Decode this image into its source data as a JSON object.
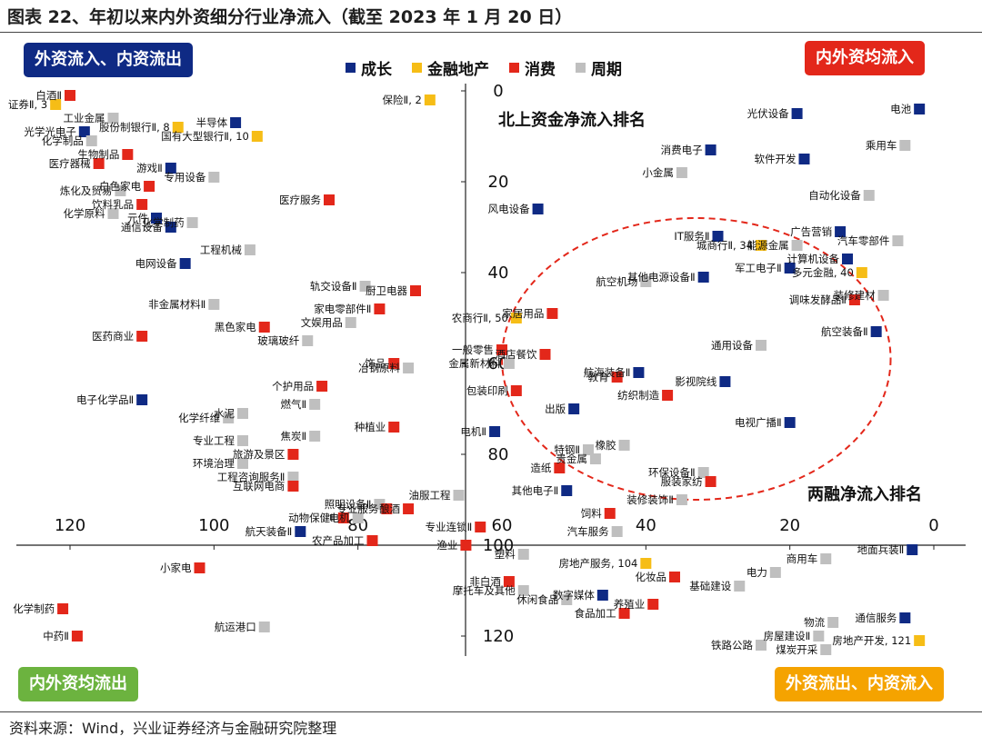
{
  "figure": {
    "title": "图表 22、年初以来内外资细分行业净流入（截至 2023 年 1 月 20 日）",
    "source": "资料来源：Wind，兴业证券经济与金融研究院整理"
  },
  "quadrants": {
    "top_left": "外资流入、内资流出",
    "top_right": "内外资均流入",
    "bottom_left": "内外资均流出",
    "bottom_right": "外资流出、内资流入"
  },
  "annotations": {
    "north_axis": "北上资金净流入排名",
    "margin_axis": "两融净流入排名"
  },
  "colors": {
    "成长": "#0f2a84",
    "金融地产": "#f6bd16",
    "消费": "#e3271a",
    "周期": "#bfbfbf",
    "ellipse": "#e3271a"
  },
  "chart_data": {
    "type": "scatter",
    "x_reversed": true,
    "y_reversed": true,
    "xlim": [
      0,
      125
    ],
    "ylim": [
      0,
      125
    ],
    "x_ticks": [
      "0",
      "20",
      "40",
      "60",
      "80",
      "100",
      "120"
    ],
    "y_ticks": [
      "0",
      "20",
      "40",
      "60",
      "80",
      "100",
      "120"
    ],
    "legend_position": "top-center",
    "legend": [
      "成长",
      "金融地产",
      "消费",
      "周期"
    ],
    "points": [
      {
        "label": "电池",
        "x": 2,
        "y": 4,
        "cat": "成长"
      },
      {
        "label": "乘用车",
        "x": 4,
        "y": 12,
        "cat": "周期"
      },
      {
        "label": "光伏设备",
        "x": 19,
        "y": 5,
        "cat": "成长"
      },
      {
        "label": "消费电子",
        "x": 31,
        "y": 13,
        "cat": "成长"
      },
      {
        "label": "软件开发",
        "x": 18,
        "y": 15,
        "cat": "成长"
      },
      {
        "label": "小金属",
        "x": 35,
        "y": 18,
        "cat": "周期"
      },
      {
        "label": "自动化设备",
        "x": 9,
        "y": 23,
        "cat": "周期"
      },
      {
        "label": "风电设备",
        "x": 55,
        "y": 26,
        "cat": "成长"
      },
      {
        "label": "广告营销",
        "x": 13,
        "y": 31,
        "cat": "成长"
      },
      {
        "label": "汽车零部件",
        "x": 5,
        "y": 33,
        "cat": "周期"
      },
      {
        "label": "IT服务Ⅱ",
        "x": 30,
        "y": 32,
        "cat": "成长"
      },
      {
        "label": "城商行Ⅱ, 34",
        "x": 24,
        "y": 34,
        "cat": "金融地产"
      },
      {
        "label": "能源金属",
        "x": 19,
        "y": 34,
        "cat": "周期"
      },
      {
        "label": "计算机设备",
        "x": 12,
        "y": 37,
        "cat": "成长"
      },
      {
        "label": "军工电子Ⅱ",
        "x": 20,
        "y": 39,
        "cat": "成长"
      },
      {
        "label": "多元金融, 40",
        "x": 10,
        "y": 40,
        "cat": "金融地产"
      },
      {
        "label": "其他电源设备Ⅱ",
        "x": 32,
        "y": 41,
        "cat": "成长"
      },
      {
        "label": "航空机场",
        "x": 40,
        "y": 42,
        "cat": "周期"
      },
      {
        "label": "装修建材",
        "x": 7,
        "y": 45,
        "cat": "周期"
      },
      {
        "label": "调味发酵品Ⅱ",
        "x": 11,
        "y": 46,
        "cat": "消费"
      },
      {
        "label": "家居用品",
        "x": 53,
        "y": 49,
        "cat": "消费"
      },
      {
        "label": "航空装备Ⅱ",
        "x": 8,
        "y": 53,
        "cat": "成长"
      },
      {
        "label": "通用设备",
        "x": 24,
        "y": 56,
        "cat": "周期"
      },
      {
        "label": "一般零售",
        "x": 60,
        "y": 57,
        "cat": "消费"
      },
      {
        "label": "酒店餐饮",
        "x": 54,
        "y": 58,
        "cat": "消费"
      },
      {
        "label": "金属新材料",
        "x": 59,
        "y": 60,
        "cat": "周期"
      },
      {
        "label": "航海装备Ⅱ",
        "x": 41,
        "y": 62,
        "cat": "成长"
      },
      {
        "label": "教育",
        "x": 44,
        "y": 63,
        "cat": "消费"
      },
      {
        "label": "影视院线",
        "x": 29,
        "y": 64,
        "cat": "成长"
      },
      {
        "label": "包装印刷",
        "x": 58,
        "y": 66,
        "cat": "消费"
      },
      {
        "label": "纺织制造",
        "x": 37,
        "y": 67,
        "cat": "消费"
      },
      {
        "label": "出版",
        "x": 50,
        "y": 70,
        "cat": "成长"
      },
      {
        "label": "电视广播Ⅱ",
        "x": 20,
        "y": 73,
        "cat": "成长"
      },
      {
        "label": "电机Ⅱ",
        "x": 61,
        "y": 75,
        "cat": "成长"
      },
      {
        "label": "橡胶",
        "x": 43,
        "y": 78,
        "cat": "周期"
      },
      {
        "label": "特钢Ⅱ",
        "x": 48,
        "y": 79,
        "cat": "周期"
      },
      {
        "label": "贵金属",
        "x": 47,
        "y": 81,
        "cat": "周期"
      },
      {
        "label": "造纸",
        "x": 52,
        "y": 83,
        "cat": "消费"
      },
      {
        "label": "环保设备Ⅱ",
        "x": 32,
        "y": 84,
        "cat": "周期"
      },
      {
        "label": "服装家纺",
        "x": 31,
        "y": 86,
        "cat": "消费"
      },
      {
        "label": "其他电子Ⅱ",
        "x": 51,
        "y": 88,
        "cat": "成长"
      },
      {
        "label": "装修装饰Ⅱ",
        "x": 35,
        "y": 90,
        "cat": "周期"
      },
      {
        "label": "饲料",
        "x": 45,
        "y": 93,
        "cat": "消费"
      },
      {
        "label": "汽车服务",
        "x": 44,
        "y": 97,
        "cat": "周期"
      },
      {
        "label": "专业连锁Ⅱ",
        "x": 63,
        "y": 96,
        "cat": "消费"
      },
      {
        "label": "渔业",
        "x": 65,
        "y": 100,
        "cat": "消费"
      },
      {
        "label": "塑料",
        "x": 57,
        "y": 102,
        "cat": "周期"
      },
      {
        "label": "地面兵装Ⅱ",
        "x": 3,
        "y": 101,
        "cat": "成长"
      },
      {
        "label": "商用车",
        "x": 15,
        "y": 103,
        "cat": "周期"
      },
      {
        "label": "房地产服务, 104",
        "x": 40,
        "y": 104,
        "cat": "金融地产"
      },
      {
        "label": "电力",
        "x": 22,
        "y": 106,
        "cat": "周期"
      },
      {
        "label": "化妆品",
        "x": 36,
        "y": 107,
        "cat": "消费"
      },
      {
        "label": "基础建设",
        "x": 27,
        "y": 109,
        "cat": "周期"
      },
      {
        "label": "白酒Ⅱ",
        "x": 120,
        "y": 1,
        "cat": "消费"
      },
      {
        "label": "证券Ⅱ, 3",
        "x": 122,
        "y": 3,
        "cat": "金融地产"
      },
      {
        "label": "保险Ⅱ, 2",
        "x": 70,
        "y": 2,
        "cat": "金融地产"
      },
      {
        "label": "工业金属",
        "x": 114,
        "y": 6,
        "cat": "周期"
      },
      {
        "label": "半导体",
        "x": 97,
        "y": 7,
        "cat": "成长"
      },
      {
        "label": "股份制银行Ⅱ, 8",
        "x": 105,
        "y": 8,
        "cat": "金融地产"
      },
      {
        "label": "光学光电子",
        "x": 118,
        "y": 9,
        "cat": "成长"
      },
      {
        "label": "国有大型银行Ⅱ, 10",
        "x": 94,
        "y": 10,
        "cat": "金融地产"
      },
      {
        "label": "化学制品",
        "x": 117,
        "y": 11,
        "cat": "周期"
      },
      {
        "label": "生物制品",
        "x": 112,
        "y": 14,
        "cat": "消费"
      },
      {
        "label": "医疗器械",
        "x": 116,
        "y": 16,
        "cat": "消费"
      },
      {
        "label": "游戏Ⅱ",
        "x": 106,
        "y": 17,
        "cat": "成长"
      },
      {
        "label": "专用设备",
        "x": 100,
        "y": 19,
        "cat": "周期"
      },
      {
        "label": "白色家电",
        "x": 109,
        "y": 21,
        "cat": "消费"
      },
      {
        "label": "炼化及贸易",
        "x": 113,
        "y": 22,
        "cat": "周期"
      },
      {
        "label": "饮料乳品",
        "x": 110,
        "y": 25,
        "cat": "消费"
      },
      {
        "label": "化学原料",
        "x": 114,
        "y": 27,
        "cat": "周期"
      },
      {
        "label": "元件",
        "x": 108,
        "y": 28,
        "cat": "成长"
      },
      {
        "label": "化学制药",
        "x": 103,
        "y": 29,
        "cat": "周期"
      },
      {
        "label": "通信设备",
        "x": 106,
        "y": 30,
        "cat": "成长"
      },
      {
        "label": "医疗服务",
        "x": 84,
        "y": 24,
        "cat": "消费"
      },
      {
        "label": "工程机械",
        "x": 95,
        "y": 35,
        "cat": "周期"
      },
      {
        "label": "电网设备",
        "x": 104,
        "y": 38,
        "cat": "成长"
      },
      {
        "label": "轨交设备Ⅱ",
        "x": 79,
        "y": 43,
        "cat": "周期"
      },
      {
        "label": "厨卫电器",
        "x": 72,
        "y": 44,
        "cat": "消费"
      },
      {
        "label": "非金属材料Ⅱ",
        "x": 100,
        "y": 47,
        "cat": "周期"
      },
      {
        "label": "家电零部件Ⅱ",
        "x": 77,
        "y": 48,
        "cat": "消费"
      },
      {
        "label": "农商行Ⅱ, 50",
        "x": 58,
        "y": 50,
        "cat": "金融地产"
      },
      {
        "label": "文娱用品",
        "x": 81,
        "y": 51,
        "cat": "周期"
      },
      {
        "label": "黑色家电",
        "x": 93,
        "y": 52,
        "cat": "消费"
      },
      {
        "label": "医药商业",
        "x": 110,
        "y": 54,
        "cat": "消费"
      },
      {
        "label": "玻璃玻纤",
        "x": 87,
        "y": 55,
        "cat": "周期"
      },
      {
        "label": "饰品",
        "x": 75,
        "y": 60,
        "cat": "消费"
      },
      {
        "label": "冶钢原料",
        "x": 73,
        "y": 61,
        "cat": "周期"
      },
      {
        "label": "个护用品",
        "x": 85,
        "y": 65,
        "cat": "消费"
      },
      {
        "label": "电子化学品Ⅱ",
        "x": 110,
        "y": 68,
        "cat": "成长"
      },
      {
        "label": "燃气Ⅱ",
        "x": 86,
        "y": 69,
        "cat": "周期"
      },
      {
        "label": "水泥",
        "x": 96,
        "y": 71,
        "cat": "周期"
      },
      {
        "label": "化学纤维",
        "x": 98,
        "y": 72,
        "cat": "周期"
      },
      {
        "label": "种植业",
        "x": 75,
        "y": 74,
        "cat": "消费"
      },
      {
        "label": "焦炭Ⅱ",
        "x": 86,
        "y": 76,
        "cat": "周期"
      },
      {
        "label": "专业工程",
        "x": 96,
        "y": 77,
        "cat": "周期"
      },
      {
        "label": "旅游及景区",
        "x": 89,
        "y": 80,
        "cat": "消费"
      },
      {
        "label": "环境治理",
        "x": 96,
        "y": 82,
        "cat": "周期"
      },
      {
        "label": "工程咨询服务Ⅱ",
        "x": 89,
        "y": 85,
        "cat": "周期"
      },
      {
        "label": "互联网电商",
        "x": 89,
        "y": 87,
        "cat": "消费"
      },
      {
        "label": "油服工程",
        "x": 66,
        "y": 89,
        "cat": "周期"
      },
      {
        "label": "照明设备Ⅱ",
        "x": 77,
        "y": 91,
        "cat": "周期"
      },
      {
        "label": "专业服务",
        "x": 76,
        "y": 92,
        "cat": "消费"
      },
      {
        "label": "酿酒",
        "x": 73,
        "y": 92,
        "cat": "消费"
      },
      {
        "label": "动物保健Ⅱ",
        "x": 82,
        "y": 94,
        "cat": "消费"
      },
      {
        "label": "电机",
        "x": 80,
        "y": 94,
        "cat": "周期"
      },
      {
        "label": "航天装备Ⅱ",
        "x": 88,
        "y": 97,
        "cat": "成长"
      },
      {
        "label": "农产品加工",
        "x": 78,
        "y": 99,
        "cat": "消费"
      },
      {
        "label": "小家电",
        "x": 102,
        "y": 105,
        "cat": "消费"
      },
      {
        "label": "非白酒",
        "x": 59,
        "y": 108,
        "cat": "消费"
      },
      {
        "label": "摩托车及其他",
        "x": 57,
        "y": 110,
        "cat": "周期"
      },
      {
        "label": "休闲食品",
        "x": 51,
        "y": 112,
        "cat": "周期"
      },
      {
        "label": "数字媒体",
        "x": 46,
        "y": 111,
        "cat": "成长"
      },
      {
        "label": "养殖业",
        "x": 39,
        "y": 113,
        "cat": "消费"
      },
      {
        "label": "食品加工",
        "x": 43,
        "y": 115,
        "cat": "消费"
      },
      {
        "label": "化学制药",
        "x": 121,
        "y": 114,
        "cat": "消费"
      },
      {
        "label": "中药Ⅱ",
        "x": 119,
        "y": 120,
        "cat": "消费"
      },
      {
        "label": "航运港口",
        "x": 93,
        "y": 118,
        "cat": "周期"
      },
      {
        "label": "物流",
        "x": 14,
        "y": 117,
        "cat": "周期"
      },
      {
        "label": "通信服务",
        "x": 4,
        "y": 116,
        "cat": "成长"
      },
      {
        "label": "房屋建设Ⅱ",
        "x": 16,
        "y": 120,
        "cat": "周期"
      },
      {
        "label": "房地产开发, 121",
        "x": 2,
        "y": 121,
        "cat": "金融地产"
      },
      {
        "label": "铁路公路",
        "x": 24,
        "y": 122,
        "cat": "周期"
      },
      {
        "label": "煤炭开采",
        "x": 15,
        "y": 123,
        "cat": "周期"
      }
    ],
    "ellipse": {
      "cx": 33,
      "cy": 59,
      "rx": 27,
      "ry": 31
    }
  }
}
